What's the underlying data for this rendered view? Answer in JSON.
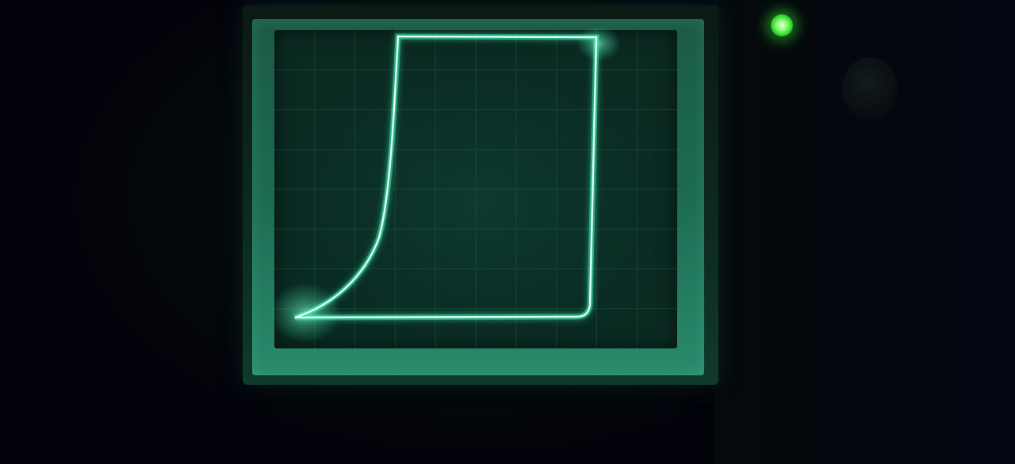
{
  "scene": {
    "subject": "oscilloscope",
    "trace_color": "#dffff2",
    "glow_color": "#3dffc0",
    "screen_color": "#0b2f26",
    "frame_color": "#1d6b53",
    "led_color": "#5bff4a",
    "background_color": "#02040a"
  },
  "icons": {
    "indicator": "power-led-icon",
    "control": "knob-icon"
  }
}
